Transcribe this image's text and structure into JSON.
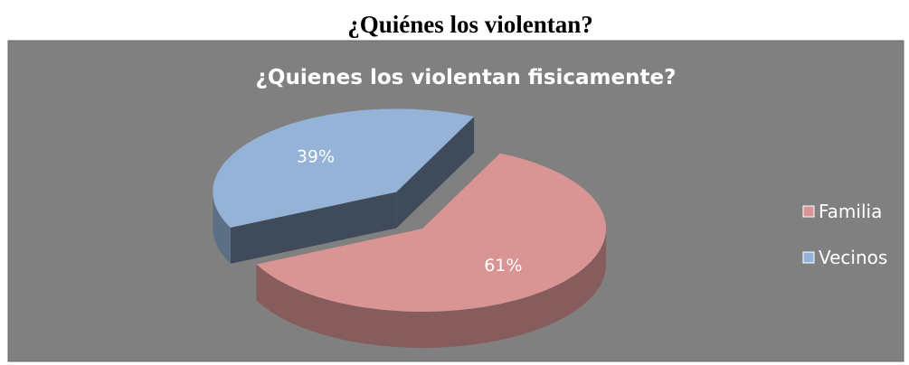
{
  "heading": "¿Quiénes los violentan?",
  "chart_data": {
    "type": "pie",
    "title": "¿Quienes los violentan fisicamente?",
    "categories": [
      "Familia",
      "Vecinos"
    ],
    "values": [
      61,
      39
    ],
    "value_labels": [
      "61%",
      "39%"
    ],
    "colors": [
      "#d99594",
      "#95b3d7"
    ],
    "legend": "right"
  }
}
